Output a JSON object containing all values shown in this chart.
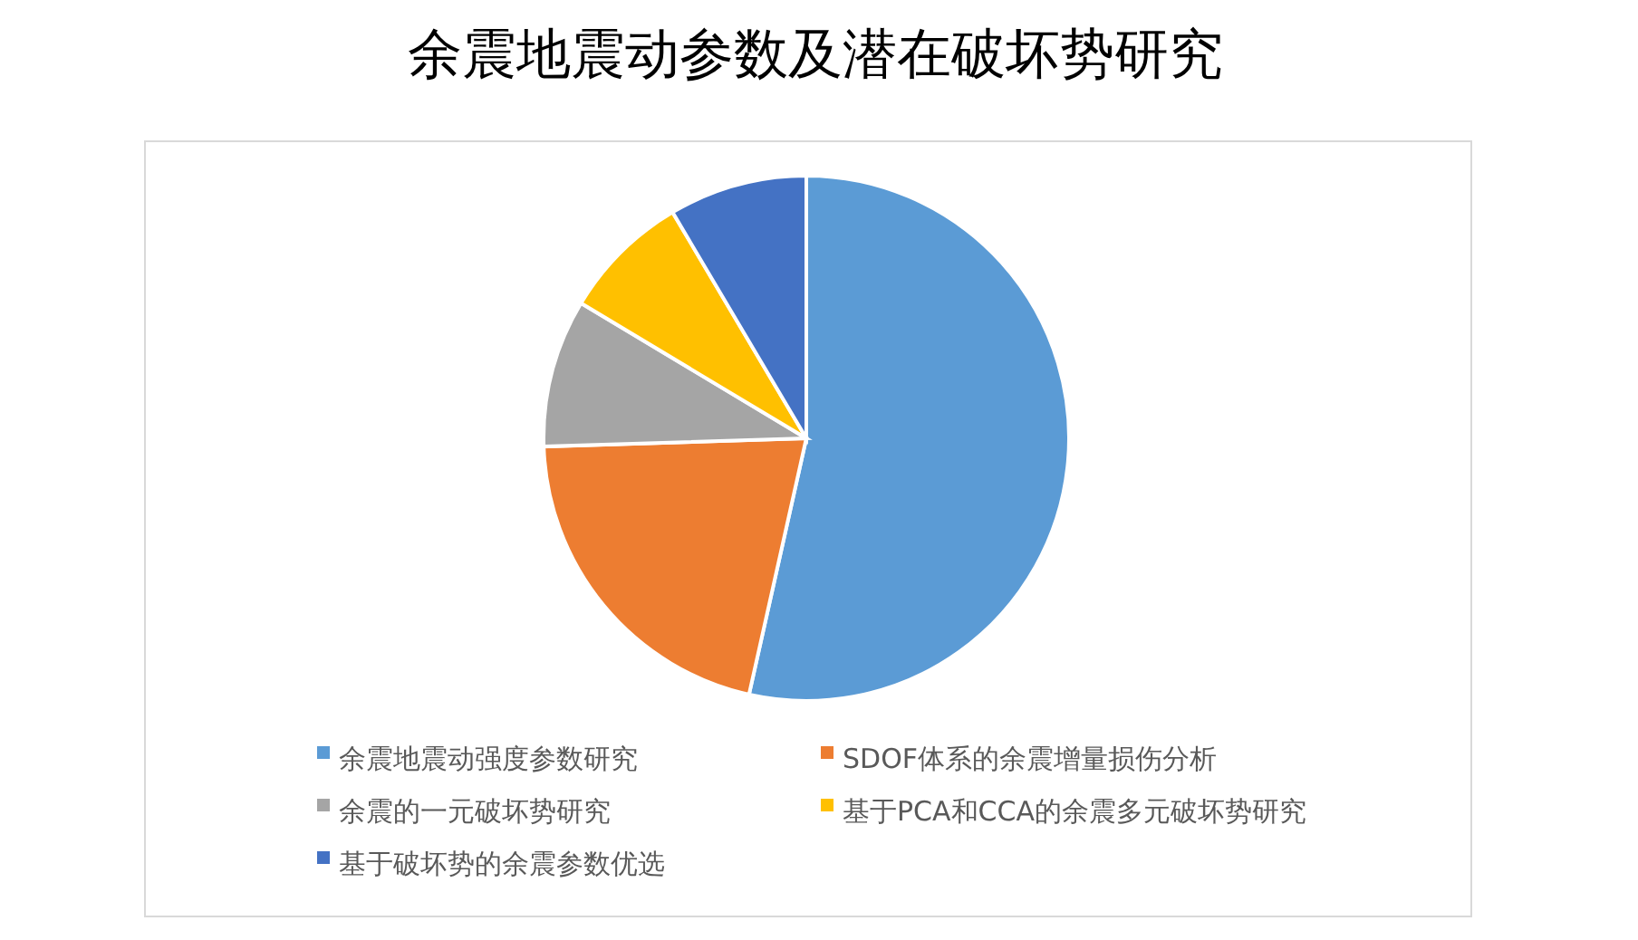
{
  "chart_data": {
    "type": "pie",
    "title": "余震地震动参数及潜在破坏势研究",
    "categories": [
      "余震地震动强度参数研究",
      "SDOF体系的余震增量损伤分析",
      "余震的一元破坏势研究",
      "基于PCA和CCA的余震多元破坏势研究",
      "基于破坏势的余震参数优选"
    ],
    "values": [
      53.5,
      21,
      9.1,
      7.9,
      8.5
    ],
    "colors": [
      "#5b9bd5",
      "#ed7d31",
      "#a5a5a5",
      "#ffc000",
      "#4472c4"
    ],
    "legend": "bottom"
  }
}
